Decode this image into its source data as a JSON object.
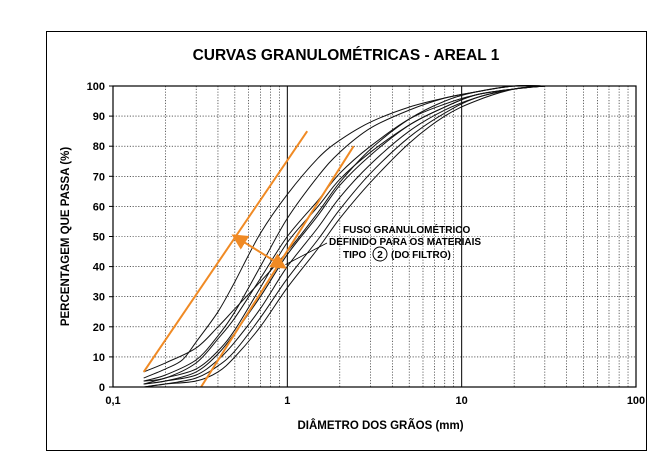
{
  "chart_data": {
    "type": "line",
    "title": "CURVAS GRANULOMÉTRICAS - AREAL 1",
    "xlabel": "DIÂMETRO DOS GRÃOS (mm)",
    "ylabel": "PERCENTAGEM QUE PASSA (%)",
    "x_scale": "log",
    "xlim": [
      0.1,
      100
    ],
    "ylim": [
      0,
      100
    ],
    "x_tick_labels": [
      "0,1",
      "1",
      "10",
      "100"
    ],
    "x_tick_values": [
      0.1,
      1,
      10,
      100
    ],
    "y_ticks": [
      0,
      10,
      20,
      30,
      40,
      50,
      60,
      70,
      80,
      90,
      100
    ],
    "grid": true,
    "annotation": {
      "lines": [
        "FUSO GRANULOMÉTRICO",
        "DEFINIDO PARA OS MATERIAIS",
        "(DO FILTRO)"
      ],
      "tipo_prefix": "TIPO",
      "circled_number": "2"
    },
    "series": [
      {
        "x": [
          0.15,
          0.2,
          0.25,
          0.3,
          0.4,
          0.5,
          0.7,
          1,
          1.5,
          2,
          3,
          5,
          8,
          12,
          20,
          30
        ],
        "y": [
          3,
          6,
          9,
          15,
          25,
          35,
          51,
          64,
          76,
          82,
          88,
          93,
          96,
          98,
          100,
          100
        ]
      },
      {
        "x": [
          0.15,
          0.2,
          0.3,
          0.4,
          0.5,
          0.7,
          1,
          1.5,
          2,
          3,
          5,
          8,
          12,
          20,
          30
        ],
        "y": [
          2,
          3,
          8,
          16,
          23,
          36,
          50,
          62,
          71,
          80,
          89,
          94,
          97,
          99,
          100
        ]
      },
      {
        "x": [
          0.15,
          0.2,
          0.3,
          0.4,
          0.5,
          0.7,
          1,
          1.5,
          2,
          3,
          5,
          8,
          12,
          20,
          30
        ],
        "y": [
          1,
          2,
          5,
          11,
          18,
          30,
          44,
          57,
          67,
          77,
          87,
          93,
          97,
          99,
          100
        ]
      },
      {
        "x": [
          0.15,
          0.2,
          0.3,
          0.4,
          0.5,
          0.7,
          1,
          1.5,
          2,
          3,
          5,
          8,
          12,
          20,
          30
        ],
        "y": [
          1,
          2,
          4,
          9,
          15,
          26,
          40,
          53,
          63,
          74,
          85,
          92,
          96,
          99,
          100
        ]
      },
      {
        "x": [
          0.15,
          0.2,
          0.3,
          0.4,
          0.5,
          0.7,
          1,
          1.5,
          2,
          3,
          5,
          8,
          12,
          20,
          30
        ],
        "y": [
          0,
          1,
          3,
          7,
          12,
          23,
          36,
          49,
          59,
          71,
          83,
          91,
          96,
          99,
          100
        ]
      },
      {
        "x": [
          0.15,
          0.2,
          0.3,
          0.4,
          0.5,
          0.7,
          1,
          1.5,
          2,
          3,
          5,
          8,
          12,
          20,
          30
        ],
        "y": [
          0,
          1,
          2,
          5,
          10,
          20,
          33,
          46,
          56,
          68,
          81,
          90,
          95,
          99,
          100
        ]
      },
      {
        "x": [
          0.15,
          0.2,
          0.3,
          0.4,
          0.5,
          0.7,
          1,
          1.5,
          2,
          3,
          5,
          8,
          12,
          20,
          30
        ],
        "y": [
          5,
          8,
          13,
          20,
          26,
          35,
          45,
          58,
          68,
          79,
          89,
          95,
          98,
          100,
          100
        ]
      },
      {
        "x": [
          0.15,
          0.2,
          0.3,
          0.4,
          0.5,
          0.7,
          1,
          1.5,
          2,
          3,
          5,
          8,
          12,
          20,
          30
        ],
        "y": [
          2,
          4,
          9,
          17,
          25,
          40,
          56,
          70,
          78,
          86,
          92,
          96,
          98,
          100,
          100
        ]
      },
      {
        "x": [
          0.15,
          0.2,
          0.3,
          0.4,
          0.5,
          0.7,
          1,
          1.5,
          2,
          3,
          5,
          8,
          12,
          20,
          30
        ],
        "y": [
          1,
          3,
          6,
          12,
          19,
          33,
          48,
          60,
          69,
          78,
          87,
          93,
          97,
          99,
          100
        ]
      }
    ],
    "envelope": {
      "color": "#f08a24",
      "lines": [
        {
          "x": [
            0.15,
            1.3
          ],
          "y": [
            5,
            85
          ]
        },
        {
          "x": [
            0.32,
            2.4
          ],
          "y": [
            0,
            80
          ]
        }
      ],
      "arrow": {
        "x": [
          0.5,
          0.95
        ],
        "y": [
          50,
          40
        ]
      }
    }
  }
}
